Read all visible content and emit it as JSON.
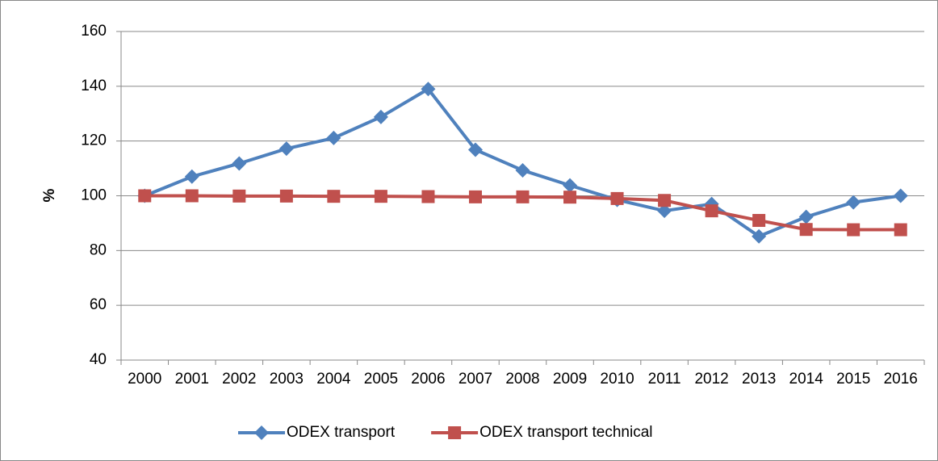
{
  "chart_data": {
    "type": "line",
    "y_label": "%",
    "categories": [
      "2000",
      "2001",
      "2002",
      "2003",
      "2004",
      "2005",
      "2006",
      "2007",
      "2008",
      "2009",
      "2010",
      "2011",
      "2012",
      "2013",
      "2014",
      "2015",
      "2016"
    ],
    "series": [
      {
        "name": "ODEX transport",
        "color": "#4f81bd",
        "marker": "diamond",
        "values": [
          100,
          107,
          111.8,
          117.2,
          121.1,
          128.8,
          139,
          116.8,
          109.3,
          103.8,
          98.5,
          94.5,
          97,
          85.2,
          92.3,
          97.6,
          100
        ]
      },
      {
        "name": "ODEX transport technical",
        "color": "#c0504d",
        "marker": "square",
        "values": [
          100,
          100,
          99.9,
          99.9,
          99.8,
          99.8,
          99.7,
          99.6,
          99.6,
          99.5,
          99,
          98.3,
          94.5,
          91,
          87.7,
          87.6,
          87.6
        ]
      }
    ],
    "ylim": [
      40,
      160
    ],
    "yticks": [
      40,
      60,
      80,
      100,
      120,
      140,
      160
    ],
    "grid": true,
    "legend": "bottom"
  }
}
